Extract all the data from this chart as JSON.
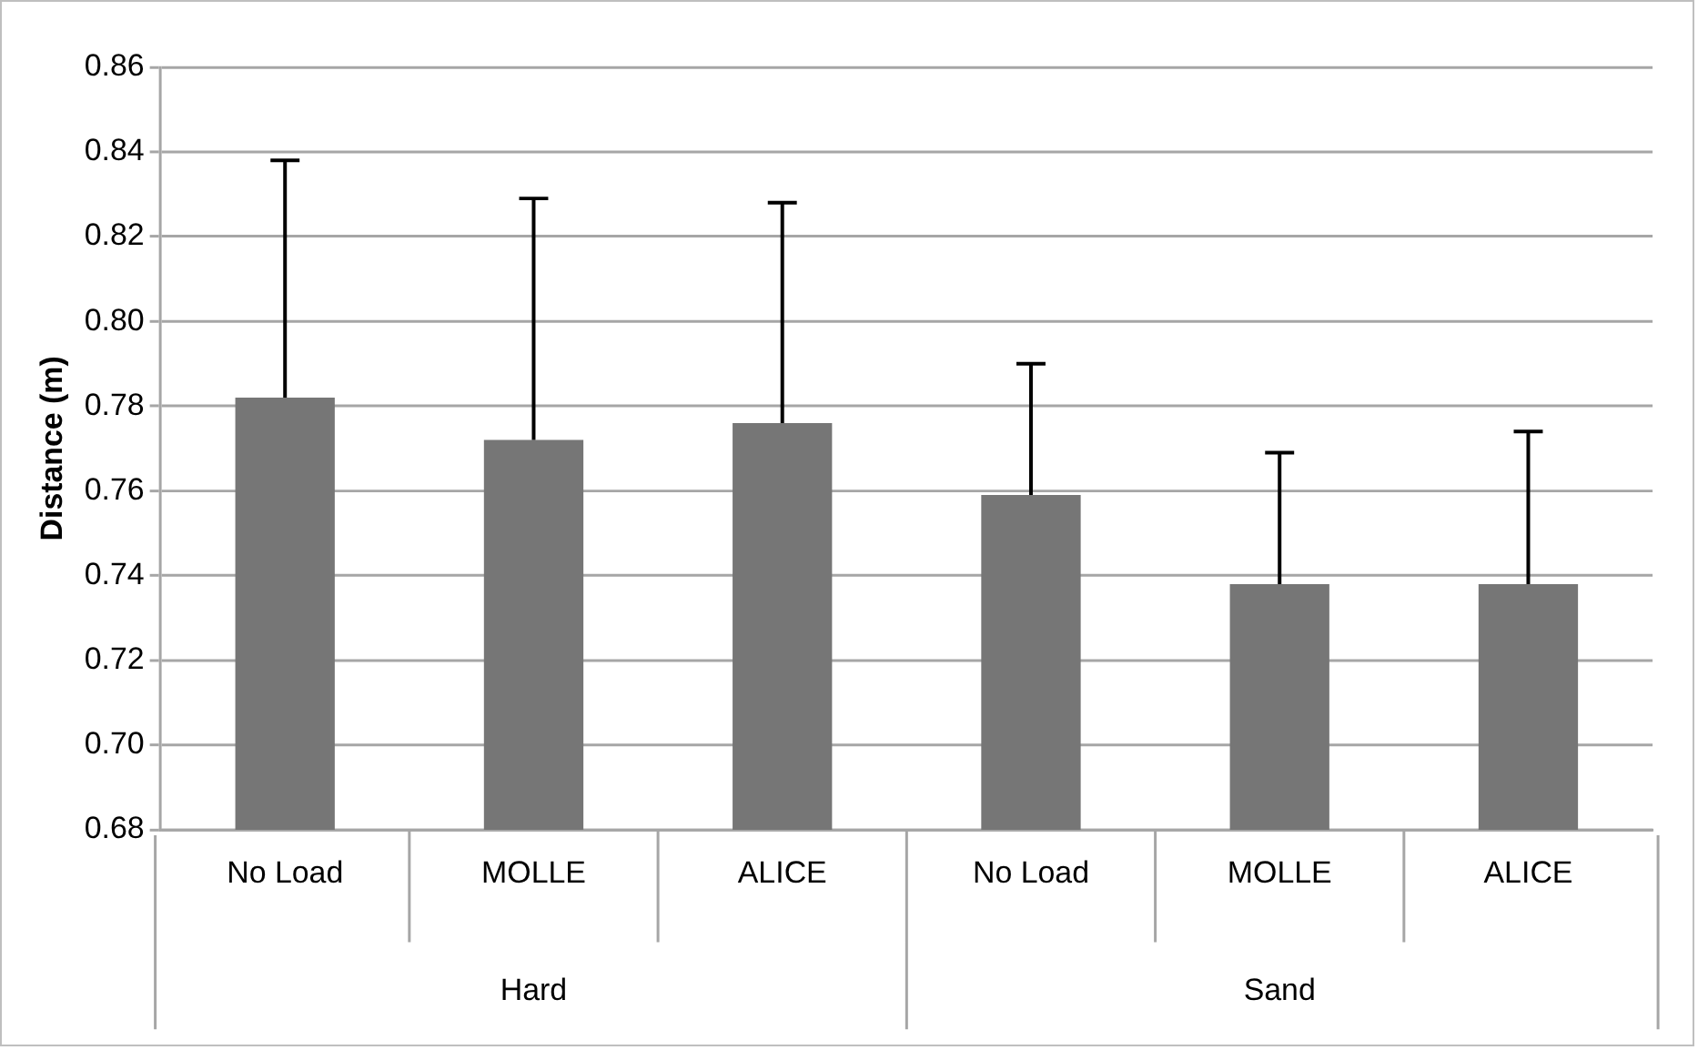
{
  "chart_data": {
    "type": "bar",
    "ylabel": "Distance (m)",
    "categories": [
      "No Load",
      "MOLLE",
      "ALICE",
      "No Load",
      "MOLLE",
      "ALICE"
    ],
    "values": [
      0.782,
      0.772,
      0.776,
      0.759,
      0.738,
      0.738
    ],
    "errors": [
      [
        0.782,
        0.838
      ],
      [
        0.772,
        0.829
      ],
      [
        0.776,
        0.828
      ],
      [
        0.759,
        0.79
      ],
      [
        0.738,
        0.769
      ],
      [
        0.738,
        0.774
      ]
    ],
    "color": "#767676",
    "ylim": [
      0.68,
      0.86
    ],
    "yticks": [
      0.68,
      {
        "value": 0.7,
        "label": "0.70"
      },
      0.72,
      0.74,
      0.76,
      0.78,
      {
        "value": 0.8,
        "label": "0.80"
      },
      0.82,
      0.84,
      0.86
    ],
    "grid": "y",
    "legend": false,
    "annotations": [
      "Hard",
      "Sand"
    ]
  }
}
